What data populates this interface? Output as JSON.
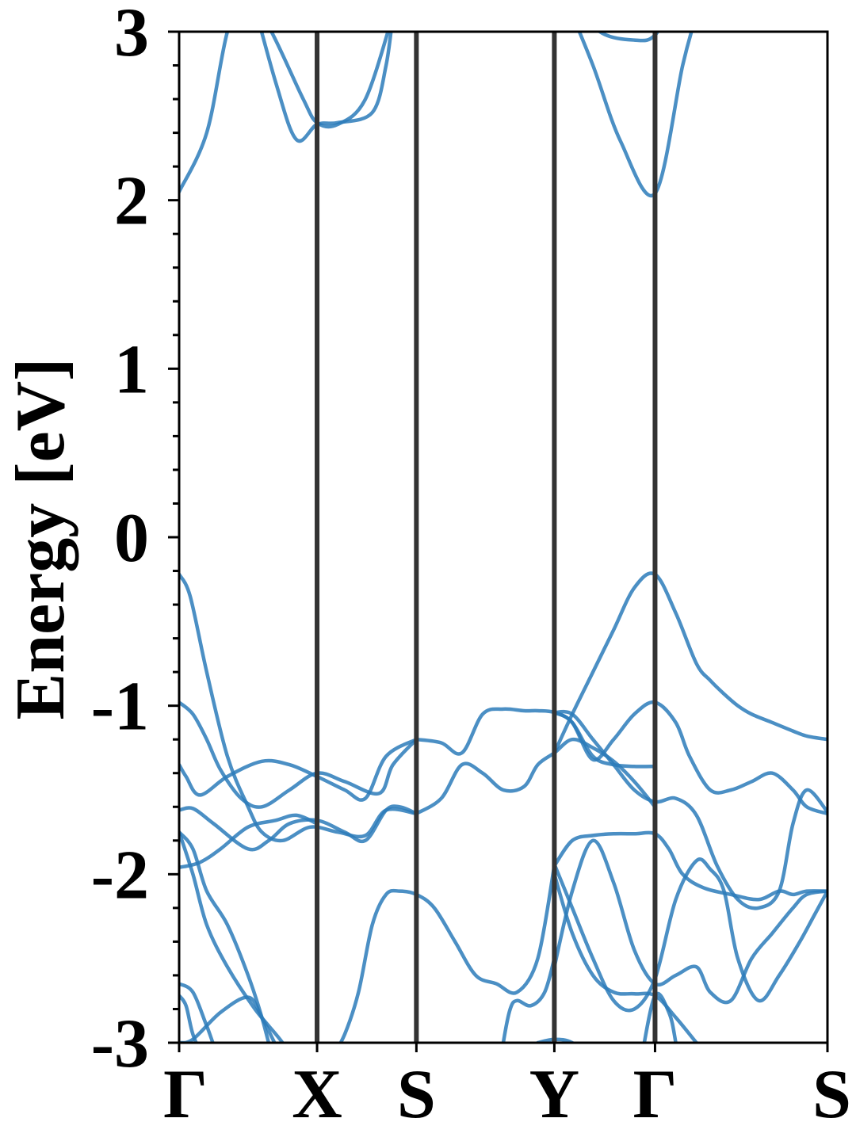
{
  "chart_data": {
    "type": "line",
    "title": "",
    "ylabel": "Energy [eV]",
    "xlabel": "",
    "ylim": [
      -3,
      3
    ],
    "xlim": [
      0,
      4.7
    ],
    "y_ticks": [
      -3,
      -2,
      -1,
      0,
      1,
      2,
      3
    ],
    "y_tick_labels": [
      "-3",
      "-2",
      "-1",
      "0",
      "1",
      "2",
      "3"
    ],
    "y_minor_step": 0.2,
    "grid": false,
    "legend": "none",
    "high_symmetry_points": [
      {
        "label": "Γ",
        "x": 0.0
      },
      {
        "label": "X",
        "x": 1.0
      },
      {
        "label": "S",
        "x": 1.72
      },
      {
        "label": "Y",
        "x": 2.72
      },
      {
        "label": "Γ",
        "x": 3.45
      },
      {
        "label": "S",
        "x": 4.7
      }
    ],
    "colors": {
      "band": "#2b7bba",
      "kline": "#333333",
      "axis": "#000000"
    },
    "series": [
      {
        "x": [
          0,
          0.2,
          0.35,
          0.5
        ],
        "y": [
          2.05,
          2.4,
          3.0,
          3.3
        ]
      },
      {
        "x": [
          0.5,
          0.7,
          0.85,
          1.0,
          1.15,
          1.4,
          1.5,
          1.55
        ],
        "y": [
          3.3,
          2.7,
          2.36,
          2.45,
          2.46,
          2.52,
          2.8,
          3.1
        ]
      },
      {
        "x": [
          0.48,
          0.7,
          0.9,
          1.0,
          1.15,
          1.35,
          1.55
        ],
        "y": [
          3.3,
          2.95,
          2.6,
          2.46,
          2.45,
          2.6,
          3.1
        ]
      },
      {
        "x": [
          2.8,
          3.0,
          3.2,
          3.45,
          3.65,
          3.75
        ],
        "y": [
          3.2,
          2.8,
          2.35,
          2.04,
          2.8,
          3.1
        ]
      },
      {
        "x": [
          2.85,
          3.05,
          3.3,
          3.45,
          3.6,
          3.7
        ],
        "y": [
          3.2,
          3.0,
          2.95,
          2.98,
          3.2,
          3.3
        ]
      },
      {
        "x": [
          0,
          0.08,
          0.2,
          0.35,
          0.5,
          0.6,
          0.75,
          0.95,
          1.15,
          1.35,
          1.5,
          1.72
        ],
        "y": [
          -0.22,
          -0.35,
          -0.8,
          -1.3,
          -1.6,
          -1.75,
          -1.8,
          -1.72,
          -1.75,
          -1.77,
          -1.62,
          -1.64
        ]
      },
      {
        "x": [
          0,
          0.1,
          0.2,
          0.3,
          0.45,
          0.6,
          0.8,
          1.0,
          1.2,
          1.45,
          1.55,
          1.72
        ],
        "y": [
          -0.98,
          -1.05,
          -1.2,
          -1.38,
          -1.55,
          -1.6,
          -1.5,
          -1.4,
          -1.45,
          -1.52,
          -1.35,
          -1.2
        ]
      },
      {
        "x": [
          0,
          0.05,
          0.15,
          0.35,
          0.6,
          0.8,
          1.0,
          1.2,
          1.35,
          1.5,
          1.72
        ],
        "y": [
          -1.35,
          -1.42,
          -1.53,
          -1.42,
          -1.33,
          -1.35,
          -1.42,
          -1.5,
          -1.55,
          -1.3,
          -1.2
        ]
      },
      {
        "x": [
          0,
          0.1,
          0.25,
          0.5,
          0.65,
          0.8,
          1.0,
          1.2,
          1.35,
          1.5,
          1.6,
          1.72
        ],
        "y": [
          -1.62,
          -1.61,
          -1.7,
          -1.85,
          -1.8,
          -1.7,
          -1.68,
          -1.75,
          -1.8,
          -1.62,
          -1.6,
          -1.64
        ]
      },
      {
        "x": [
          0,
          0.15,
          0.3,
          0.5,
          0.7,
          0.85,
          1.0
        ],
        "y": [
          -1.96,
          -1.93,
          -1.85,
          -1.72,
          -1.68,
          -1.65,
          -1.7
        ]
      },
      {
        "x": [
          0,
          0.1,
          0.2,
          0.35,
          0.5,
          0.6,
          0.68
        ],
        "y": [
          -1.75,
          -1.85,
          -2.1,
          -2.3,
          -2.6,
          -2.85,
          -3.1
        ]
      },
      {
        "x": [
          0,
          0.1,
          0.2,
          0.35,
          0.55,
          0.75,
          0.85
        ],
        "y": [
          -1.75,
          -2.0,
          -2.3,
          -2.55,
          -2.8,
          -3.0,
          -3.15
        ]
      },
      {
        "x": [
          0,
          0.1,
          0.2,
          0.3,
          0.45,
          0.5
        ],
        "y": [
          -2.65,
          -2.7,
          -2.9,
          -3.1,
          -3.2,
          -3.3
        ]
      },
      {
        "x": [
          0,
          0.05,
          0.1,
          0.18,
          0.25
        ],
        "y": [
          -2.72,
          -2.78,
          -2.95,
          -3.1,
          -3.2
        ]
      },
      {
        "x": [
          0,
          0.1,
          0.3,
          0.5,
          0.6,
          0.75
        ],
        "y": [
          -3.0,
          -2.98,
          -2.82,
          -2.73,
          -2.85,
          -3.1
        ]
      },
      {
        "x": [
          1.1,
          1.2,
          1.3,
          1.4,
          1.5,
          1.6,
          1.72,
          1.85,
          2.0,
          2.15,
          2.3,
          2.45,
          2.6,
          2.72
        ],
        "y": [
          -3.1,
          -2.95,
          -2.7,
          -2.3,
          -2.12,
          -2.1,
          -2.12,
          -2.2,
          -2.4,
          -2.6,
          -2.65,
          -2.7,
          -2.5,
          -1.95
        ]
      },
      {
        "x": [
          1.72,
          1.9,
          2.05,
          2.2,
          2.35,
          2.5,
          2.6,
          2.72,
          2.85,
          3.0,
          3.15,
          3.3,
          3.45
        ],
        "y": [
          -1.2,
          -1.22,
          -1.28,
          -1.05,
          -1.02,
          -1.03,
          -1.03,
          -1.04,
          -1.1,
          -1.3,
          -1.35,
          -1.36,
          -1.36
        ]
      },
      {
        "x": [
          1.72,
          1.9,
          2.05,
          2.2,
          2.35,
          2.5,
          2.6,
          2.72,
          2.85,
          3.0,
          3.15,
          3.3,
          3.45
        ],
        "y": [
          -1.64,
          -1.55,
          -1.35,
          -1.4,
          -1.5,
          -1.48,
          -1.35,
          -1.28,
          -1.2,
          -1.25,
          -1.33,
          -1.45,
          -1.6
        ]
      },
      {
        "x": [
          2.3,
          2.35,
          2.4,
          2.45,
          2.55,
          2.65,
          2.72
        ],
        "y": [
          -3.3,
          -3.0,
          -2.8,
          -2.75,
          -2.78,
          -2.7,
          -2.5
        ]
      },
      {
        "x": [
          2.72,
          2.85,
          3.0,
          3.15,
          3.3,
          3.45,
          3.6,
          3.75,
          3.85,
          3.95,
          4.05,
          4.15,
          4.3,
          4.45,
          4.55,
          4.7
        ],
        "y": [
          -1.28,
          -1.05,
          -0.8,
          -0.55,
          -0.3,
          -0.22,
          -0.45,
          -0.75,
          -0.85,
          -0.93,
          -1.0,
          -1.05,
          -1.1,
          -1.15,
          -1.18,
          -1.2
        ]
      },
      {
        "x": [
          2.72,
          2.85,
          3.0,
          3.15,
          3.3,
          3.45,
          3.6,
          3.75,
          3.9,
          4.05,
          4.2,
          4.35,
          4.45,
          4.55,
          4.7
        ],
        "y": [
          -1.04,
          -1.05,
          -1.2,
          -1.35,
          -1.5,
          -1.57,
          -1.55,
          -1.65,
          -1.95,
          -2.15,
          -2.2,
          -2.1,
          -1.7,
          -1.5,
          -1.63
        ]
      },
      {
        "x": [
          2.72,
          2.85,
          3.0,
          3.15,
          3.3,
          3.45,
          3.6,
          3.7,
          3.85,
          4.0,
          4.15,
          4.3,
          4.45,
          4.55,
          4.7
        ],
        "y": [
          -1.04,
          -1.1,
          -1.32,
          -1.2,
          -1.05,
          -0.98,
          -1.1,
          -1.3,
          -1.5,
          -1.5,
          -1.45,
          -1.4,
          -1.5,
          -1.6,
          -1.64
        ]
      },
      {
        "x": [
          2.72,
          2.85,
          3.0,
          3.15,
          3.3,
          3.45,
          3.55,
          3.65,
          3.8,
          4.0,
          4.2,
          4.35,
          4.45,
          4.55,
          4.7
        ],
        "y": [
          -1.95,
          -1.8,
          -1.77,
          -1.76,
          -1.76,
          -1.76,
          -1.85,
          -2.0,
          -2.08,
          -2.12,
          -2.15,
          -2.1,
          -2.12,
          -2.1,
          -2.1
        ]
      },
      {
        "x": [
          2.72,
          2.85,
          3.0,
          3.15,
          3.3,
          3.45,
          3.6,
          3.75,
          3.85,
          4.0,
          4.15,
          4.3,
          4.45,
          4.55,
          4.7
        ],
        "y": [
          -2.55,
          -2.1,
          -1.8,
          -2.05,
          -2.45,
          -2.65,
          -2.6,
          -2.55,
          -2.7,
          -2.75,
          -2.5,
          -2.35,
          -2.2,
          -2.12,
          -2.1
        ]
      },
      {
        "x": [
          2.72,
          2.85,
          3.0,
          3.15,
          3.3,
          3.45,
          3.6,
          3.75,
          3.85,
          3.95,
          4.05,
          4.2,
          4.35,
          4.5,
          4.6,
          4.7
        ],
        "y": [
          -1.94,
          -2.2,
          -2.5,
          -2.75,
          -2.8,
          -2.62,
          -2.15,
          -1.92,
          -1.97,
          -2.1,
          -2.5,
          -2.75,
          -2.6,
          -2.4,
          -2.25,
          -2.1
        ]
      },
      {
        "x": [
          2.72,
          2.85,
          3.0,
          3.15,
          3.3,
          3.45,
          3.6,
          3.75,
          3.85,
          3.95,
          4.05
        ],
        "y": [
          -2.0,
          -2.35,
          -2.6,
          -2.7,
          -2.71,
          -2.72,
          -2.85,
          -3.0,
          -3.1,
          -3.2,
          -3.3
        ]
      },
      {
        "x": [
          2.6,
          2.72,
          2.85,
          3.0,
          3.15,
          3.25
        ],
        "y": [
          -3.0,
          -2.98,
          -3.0,
          -3.1,
          -3.2,
          -3.3
        ]
      },
      {
        "x": [
          3.35,
          3.45,
          3.55,
          3.6,
          3.65
        ],
        "y": [
          -3.1,
          -2.72,
          -2.82,
          -3.0,
          -3.3
        ]
      }
    ]
  }
}
